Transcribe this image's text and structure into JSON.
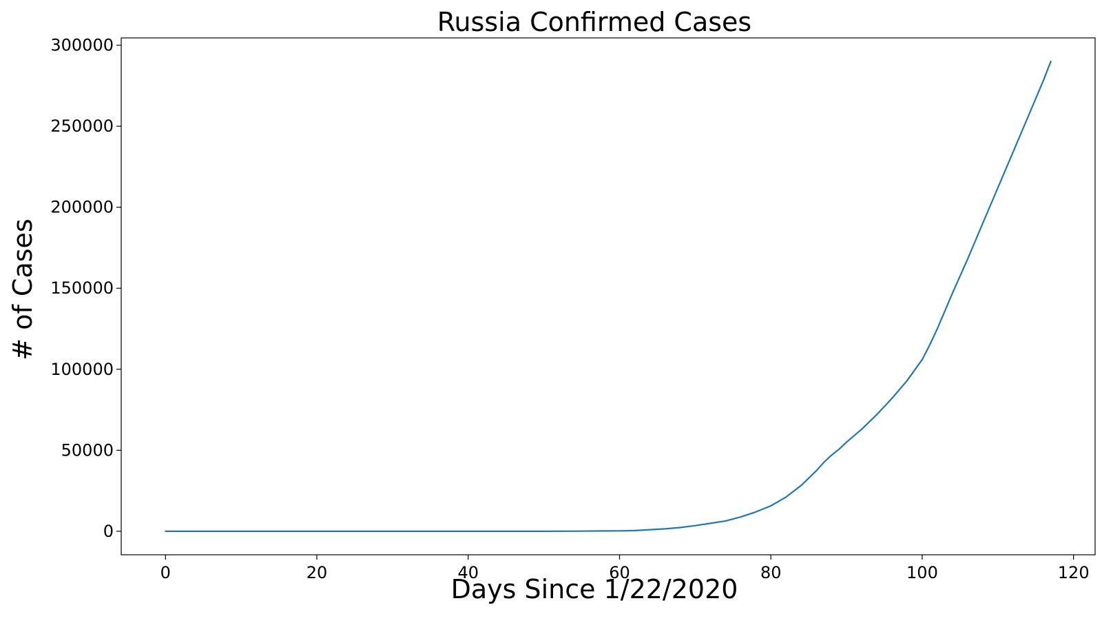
{
  "chart_data": {
    "type": "line",
    "title": "Russia Confirmed Cases",
    "xlabel": "Days Since 1/22/2020",
    "ylabel": "# of Cases",
    "xlim": [
      -5.85,
      122.85
    ],
    "ylim": [
      -14500,
      304500
    ],
    "xticks": [
      0,
      20,
      40,
      60,
      80,
      100,
      120
    ],
    "yticks": [
      0,
      50000,
      100000,
      150000,
      200000,
      250000,
      300000
    ],
    "grid": false,
    "colors": {
      "line": "#1f77b4",
      "axes": "#000000",
      "background": "#ffffff"
    },
    "series": [
      {
        "x": [
          0,
          5,
          10,
          15,
          20,
          25,
          30,
          35,
          40,
          45,
          50,
          55,
          58,
          60,
          62,
          64,
          66,
          68,
          70,
          72,
          74,
          76,
          78,
          80,
          82,
          84,
          86,
          87,
          88,
          89,
          90,
          92,
          94,
          96,
          98,
          100,
          101,
          102,
          103,
          104,
          106,
          108,
          110,
          112,
          114,
          116,
          117
        ],
        "values": [
          0,
          0,
          0,
          0,
          0,
          0,
          2,
          2,
          2,
          3,
          10,
          90,
          200,
          250,
          440,
          1000,
          1500,
          2300,
          3500,
          4900,
          6400,
          8800,
          11900,
          15700,
          21100,
          28300,
          37300,
          42500,
          46900,
          50600,
          55000,
          63000,
          72000,
          82000,
          93000,
          106000,
          115000,
          125000,
          136000,
          147000,
          168000,
          190000,
          212000,
          234000,
          256000,
          278000,
          290000
        ]
      }
    ]
  }
}
